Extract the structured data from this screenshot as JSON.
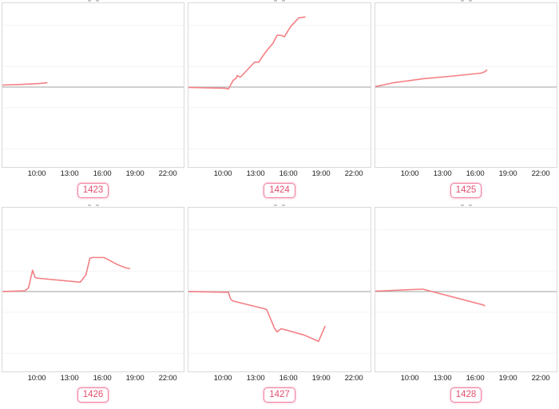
{
  "page": {
    "background": "#ffffff",
    "description_colors": {
      "series_line": "#f47f84",
      "baseline": "#b3b3b3",
      "gridline": "#f3f3f3",
      "panel_border": "#d9d9d9",
      "tick_text": "#222222",
      "badge_text": "#e14f6f",
      "badge_border": "#f0809f"
    }
  },
  "x_axis": {
    "tick_labels": [
      "10:00",
      "13:00",
      "16:00",
      "19:00",
      "22:00"
    ],
    "tick_hours": [
      10,
      13,
      16,
      19,
      22
    ],
    "range_hours": [
      7.0,
      23.7
    ],
    "grid": "faint horizontal lines only"
  },
  "chart_data": [
    {
      "id": "1423",
      "type": "line",
      "x_unit": "time of day (hours)",
      "y_unit": "relative value (no visible scale; offset from baseline 0)",
      "baseline": 0,
      "points": [
        [
          7.0,
          2.5
        ],
        [
          8.5,
          3.2
        ],
        [
          9.5,
          3.8
        ],
        [
          10.5,
          4.6
        ],
        [
          11.1,
          5.5
        ]
      ]
    },
    {
      "id": "1424",
      "type": "line",
      "x_unit": "time of day (hours)",
      "y_unit": "relative value (no visible scale; offset from baseline 0)",
      "baseline": 0,
      "points": [
        [
          7.0,
          -0.5
        ],
        [
          10.37,
          -1.5
        ],
        [
          10.66,
          -2.5
        ],
        [
          11.1,
          8.5
        ],
        [
          11.39,
          11.5
        ],
        [
          11.46,
          14.5
        ],
        [
          11.75,
          12.5
        ],
        [
          11.97,
          15.5
        ],
        [
          12.85,
          28.5
        ],
        [
          13.07,
          31.5
        ],
        [
          13.44,
          31.5
        ],
        [
          14.02,
          43.5
        ],
        [
          14.75,
          55.5
        ],
        [
          15.12,
          65.5
        ],
        [
          15.48,
          65.5
        ],
        [
          15.78,
          63.5
        ],
        [
          16.36,
          76.5
        ],
        [
          17.1,
          87.5
        ],
        [
          17.68,
          88.5
        ]
      ]
    },
    {
      "id": "1425",
      "type": "line",
      "x_unit": "time of day (hours)",
      "y_unit": "relative value (no visible scale; offset from baseline 0)",
      "baseline": 0,
      "points": [
        [
          7.0,
          0.5
        ],
        [
          8.7,
          5.5
        ],
        [
          11.4,
          10.5
        ],
        [
          13.8,
          13.5
        ],
        [
          16.7,
          17.5
        ],
        [
          17.1,
          19.5
        ],
        [
          17.25,
          21.5
        ]
      ]
    },
    {
      "id": "1426",
      "type": "line",
      "x_unit": "time of day (hours)",
      "y_unit": "relative value (no visible scale; offset from baseline 0)",
      "baseline": 0,
      "points": [
        [
          7.07,
          0
        ],
        [
          9.05,
          1
        ],
        [
          9.27,
          3
        ],
        [
          9.41,
          5
        ],
        [
          9.78,
          27
        ],
        [
          10.0,
          18
        ],
        [
          10.15,
          17
        ],
        [
          14.02,
          12
        ],
        [
          14.17,
          12
        ],
        [
          14.68,
          21
        ],
        [
          15.05,
          42
        ],
        [
          15.27,
          43
        ],
        [
          16.36,
          43
        ],
        [
          17.6,
          34
        ],
        [
          18.34,
          30
        ],
        [
          18.7,
          29
        ]
      ]
    },
    {
      "id": "1427",
      "type": "line",
      "x_unit": "time of day (hours)",
      "y_unit": "relative value (no visible scale; offset from baseline 0)",
      "baseline": 0,
      "points": [
        [
          7.0,
          0
        ],
        [
          10.66,
          -1
        ],
        [
          10.88,
          -10
        ],
        [
          11.1,
          -12
        ],
        [
          14.02,
          -22
        ],
        [
          14.17,
          -23
        ],
        [
          14.9,
          -47
        ],
        [
          15.12,
          -51
        ],
        [
          15.48,
          -47
        ],
        [
          15.78,
          -48
        ],
        [
          17.6,
          -55
        ],
        [
          18.78,
          -62
        ],
        [
          18.92,
          -63
        ],
        [
          19.51,
          -44
        ]
      ]
    },
    {
      "id": "1428",
      "type": "line",
      "x_unit": "time of day (hours)",
      "y_unit": "relative value (no visible scale; offset from baseline 0)",
      "baseline": 0,
      "points": [
        [
          7.0,
          0.5
        ],
        [
          11.24,
          3
        ],
        [
          11.39,
          3
        ],
        [
          16.95,
          -17
        ],
        [
          17.05,
          -18
        ]
      ]
    }
  ]
}
